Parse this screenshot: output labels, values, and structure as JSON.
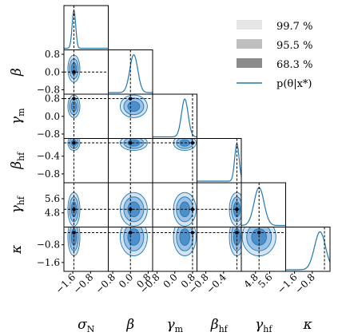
{
  "chart_data": {
    "type": "corner",
    "parameters": [
      {
        "key": "sigma_N",
        "label": "σN",
        "sub": "N",
        "base": "σ",
        "range": [
          -2.0,
          0.0
        ],
        "ticks": [
          "-1.6",
          "-0.8"
        ],
        "truth": -1.55
      },
      {
        "key": "beta",
        "label": "β",
        "sub": "",
        "base": "β",
        "range": [
          -1.0,
          1.0
        ],
        "ticks": [
          "-0.8",
          "0.0",
          "0.8"
        ],
        "truth": 0.0
      },
      {
        "key": "gamma_m",
        "label": "γm",
        "sub": "m",
        "base": "γ",
        "range": [
          -1.0,
          1.0
        ],
        "ticks": [
          "-0.8",
          "0.0",
          "0.8"
        ],
        "truth": 0.8
      },
      {
        "key": "beta_hf",
        "label": "βhf",
        "sub": "hf",
        "base": "β",
        "range": [
          -1.0,
          0.0
        ],
        "ticks": [
          "-0.8",
          "-0.4"
        ],
        "truth": -0.1
      },
      {
        "key": "gamma_hf",
        "label": "γhf",
        "sub": "hf",
        "base": "γ",
        "range": [
          4.0,
          6.5
        ],
        "ticks": [
          "4.8",
          "5.6"
        ],
        "truth": 5.0
      },
      {
        "key": "kappa",
        "label": "κ",
        "sub": "",
        "base": "κ",
        "range": [
          -2.0,
          0.0
        ],
        "ticks": [
          "-1.6",
          "-0.8"
        ],
        "truth": -0.25
      }
    ],
    "posterior_modes": [
      -1.55,
      0.15,
      0.45,
      -0.1,
      5.0,
      -0.45
    ],
    "posterior_widths": [
      0.08,
      0.18,
      0.15,
      0.05,
      0.28,
      0.25
    ],
    "legend": [
      {
        "label": "99.7 %",
        "kind": "patch",
        "color": "#e6e6e6"
      },
      {
        "label": "95.5 %",
        "kind": "patch",
        "color": "#bfbfbf"
      },
      {
        "label": "68.3 %",
        "kind": "patch",
        "color": "#8c8c8c"
      },
      {
        "label": "p(θ|x*)",
        "kind": "line",
        "color": "#1f77b4"
      }
    ],
    "contour_levels": [
      "99.7 %",
      "95.5 %",
      "68.3 %"
    ],
    "colors": {
      "line": "#1f77b4",
      "fill1": "#d5e4f3",
      "fill2": "#9bc2e6",
      "fill3": "#4f8fc9"
    }
  }
}
